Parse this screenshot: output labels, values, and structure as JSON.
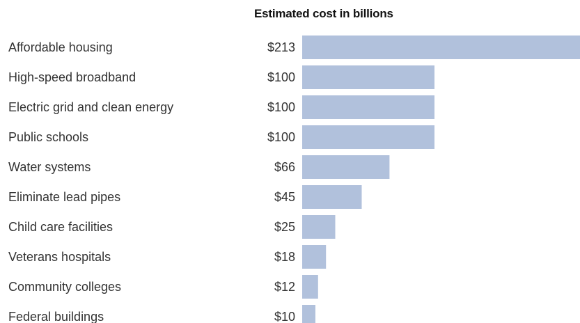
{
  "chart_data": {
    "type": "bar",
    "orientation": "horizontal",
    "title": "Estimated cost in billions",
    "categories": [
      "Affordable housing",
      "High-speed broadband",
      "Electric grid and clean energy",
      "Public schools",
      "Water systems",
      "Eliminate lead pipes",
      "Child care facilities",
      "Veterans hospitals",
      "Community colleges",
      "Federal buildings"
    ],
    "values": [
      213,
      100,
      100,
      100,
      66,
      45,
      25,
      18,
      12,
      10
    ],
    "value_labels": [
      "$213",
      "$100",
      "$100",
      "$100",
      "$66",
      "$45",
      "$25",
      "$18",
      "$12",
      "$10"
    ],
    "xlabel": "",
    "ylabel": "",
    "grid": false,
    "legend": "none"
  },
  "colors": {
    "bar": "#b1c1dc",
    "text": "#333333",
    "title": "#121212"
  }
}
